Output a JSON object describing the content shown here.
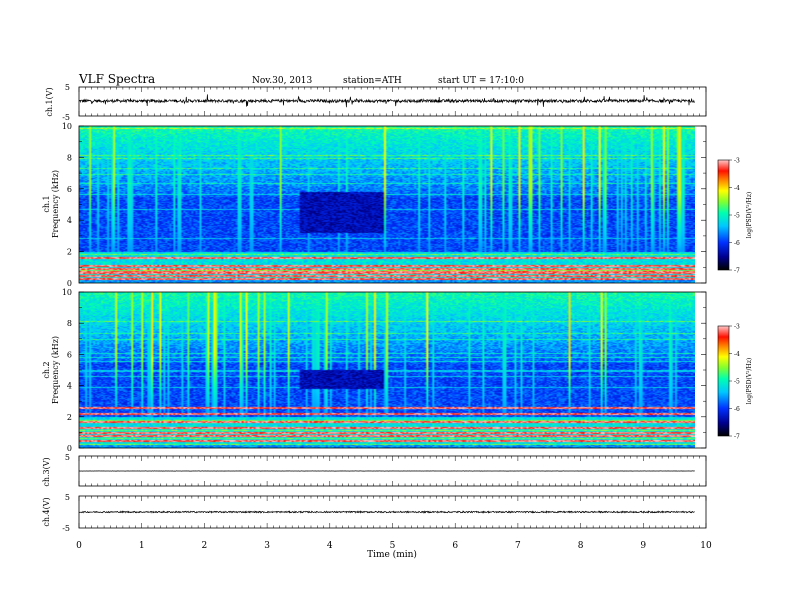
{
  "header": {
    "title": "VLF  Spectra",
    "date": "Nov.30, 2013",
    "station": "station=ATH",
    "start": "start  UT =    17:10:0"
  },
  "chart_data": [
    {
      "type": "line",
      "panel": "ch1-waveform",
      "ylabel": "ch.1(V)",
      "ylim": [
        -5,
        5
      ],
      "xlim": [
        0,
        10
      ],
      "yticks": [
        "5",
        "-5"
      ],
      "baseline_value": 0.2,
      "noise_amplitude": 1.0,
      "x_end": 9.82
    },
    {
      "type": "heatmap",
      "panel": "ch1-spectrogram",
      "ylabel_channel": "ch.1",
      "ylabel": "Frequency  (kHz)",
      "yticks": [
        "0",
        "2",
        "4",
        "6",
        "8",
        "10"
      ],
      "ylim": [
        0,
        10
      ],
      "xlim": [
        0,
        10
      ],
      "x_end": 9.82,
      "quiet_interval": [
        3.5,
        4.85
      ],
      "quiet_band_khz": [
        3.2,
        5.8
      ],
      "strong_bands_khz": [
        0.3,
        0.5,
        0.7,
        0.9,
        1.1,
        1.6
      ],
      "colorbar": {
        "label": "log(PSD(V²/Hz)",
        "ticks": [
          "-3",
          "-4",
          "-5",
          "-6",
          "-7"
        ],
        "range": [
          -7,
          -3
        ]
      }
    },
    {
      "type": "heatmap",
      "panel": "ch2-spectrogram",
      "ylabel_channel": "ch.2",
      "ylabel": "Frequency  (kHz)",
      "yticks": [
        "0",
        "2",
        "4",
        "6",
        "8",
        "10"
      ],
      "ylim": [
        0,
        10
      ],
      "xlim": [
        0,
        10
      ],
      "x_end": 9.82,
      "quiet_interval": [
        3.5,
        4.85
      ],
      "quiet_band_khz": [
        3.8,
        5.0
      ],
      "strong_bands_khz": [
        0.5,
        0.8,
        1.0,
        1.3,
        1.7,
        2.2,
        2.6
      ],
      "colorbar": {
        "label": "log(PSD(V²/Hz)",
        "ticks": [
          "-3",
          "-4",
          "-5",
          "-6",
          "-7"
        ],
        "range": [
          -7,
          -3
        ]
      }
    },
    {
      "type": "line",
      "panel": "ch3-waveform",
      "ylabel": "ch.3(V)",
      "ylim": [
        -5,
        5
      ],
      "xlim": [
        0,
        10
      ],
      "yticks": [
        "5"
      ],
      "baseline_value": 0,
      "noise_amplitude": 0.05,
      "x_end": 9.82
    },
    {
      "type": "line",
      "panel": "ch4-waveform",
      "ylabel": "ch.4(V)",
      "ylim": [
        -5,
        5
      ],
      "xlim": [
        0,
        10
      ],
      "yticks": [
        "5",
        "-5"
      ],
      "baseline_value": 0,
      "noise_amplitude": 0.45,
      "x_end": 9.82
    }
  ],
  "xaxis": {
    "label": "Time  (min)",
    "ticks": [
      "0",
      "1",
      "2",
      "3",
      "4",
      "5",
      "6",
      "7",
      "8",
      "9",
      "10"
    ]
  },
  "colors": {
    "colormap": [
      "#000000",
      "#000080",
      "#0000ff",
      "#00a0ff",
      "#00e8d0",
      "#40ff60",
      "#c8ff00",
      "#ffff00",
      "#ff9000",
      "#ff0000",
      "#ffffff"
    ]
  }
}
